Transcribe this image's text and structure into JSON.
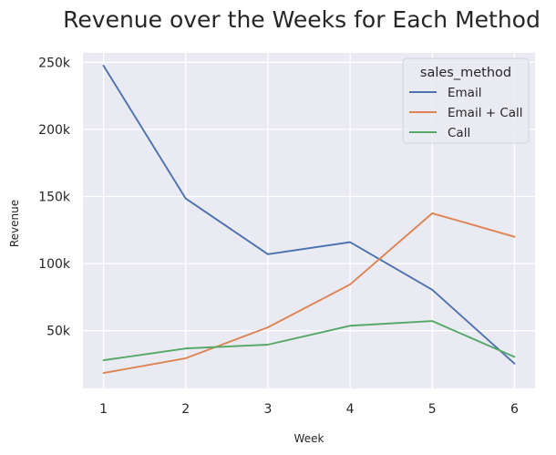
{
  "chart_data": {
    "type": "line",
    "title": "Revenue over the Weeks for Each Method",
    "xlabel": "Week",
    "ylabel": "Revenue",
    "x": [
      1,
      2,
      3,
      4,
      5,
      6
    ],
    "xticks": [
      1,
      2,
      3,
      4,
      5,
      6
    ],
    "xtick_labels": [
      "1",
      "2",
      "3",
      "4",
      "5",
      "6"
    ],
    "yticks": [
      50000,
      100000,
      150000,
      200000,
      250000
    ],
    "ytick_labels": [
      "50k",
      "100k",
      "150k",
      "200k",
      "250k"
    ],
    "xlim": [
      0.75,
      6.25
    ],
    "ylim": [
      7000,
      257000
    ],
    "grid": true,
    "legend": {
      "title": "sales_method",
      "placement": "top-right"
    },
    "series": [
      {
        "name": "Email",
        "color": "#4c72b0",
        "values": [
          247500,
          148500,
          107000,
          116000,
          80500,
          25500
        ]
      },
      {
        "name": "Email + Call",
        "color": "#dd8452",
        "values": [
          18500,
          29500,
          52500,
          84500,
          137500,
          120000
        ]
      },
      {
        "name": "Call",
        "color": "#55a868",
        "values": [
          28000,
          36800,
          39600,
          53700,
          57200,
          30500
        ]
      }
    ],
    "style": {
      "plot_background": "#eaeaf2",
      "grid_color": "#ffffff"
    }
  }
}
